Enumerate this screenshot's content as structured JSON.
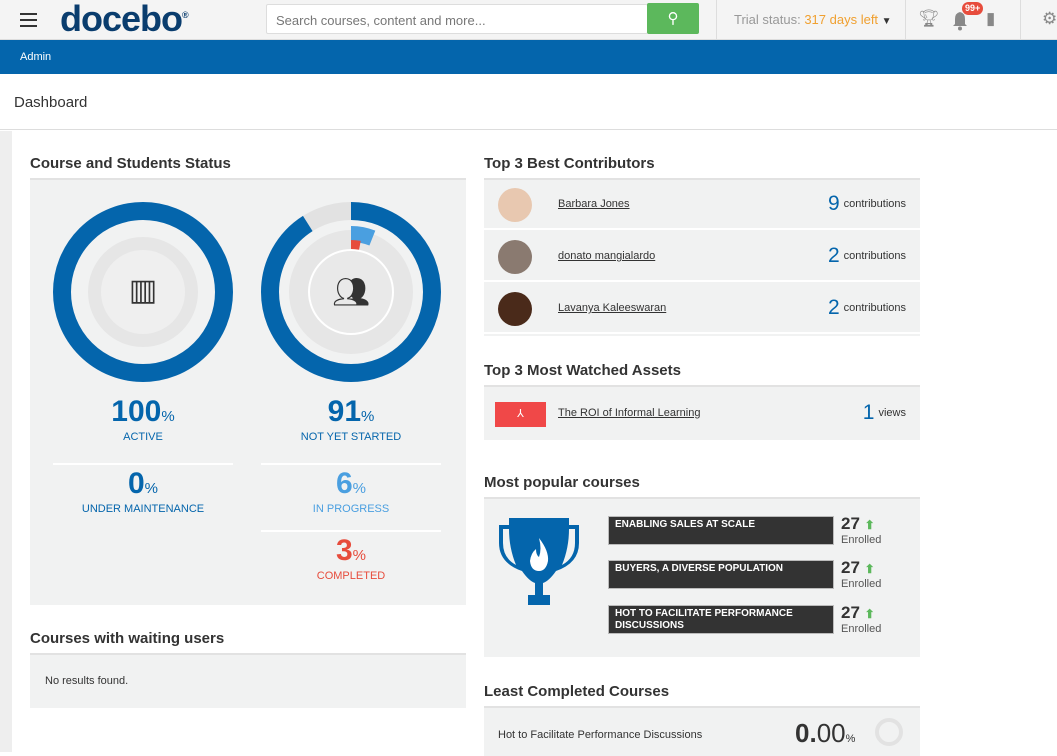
{
  "header": {
    "logo": "docebo",
    "search_placeholder": "Search courses, content and more...",
    "trial_label": "Trial status:",
    "trial_days": "317 days left",
    "notifications_count": "99+"
  },
  "nav": {
    "admin": "Admin"
  },
  "page": {
    "title": "Dashboard"
  },
  "course_status": {
    "title": "Course and Students Status",
    "active": {
      "value": "100",
      "unit": "%",
      "label": "ACTIVE"
    },
    "maintenance": {
      "value": "0",
      "unit": "%",
      "label": "UNDER MAINTENANCE"
    },
    "not_started": {
      "value": "91",
      "unit": "%",
      "label": "NOT YET STARTED"
    },
    "in_progress": {
      "value": "6",
      "unit": "%",
      "label": "IN PROGRESS"
    },
    "completed": {
      "value": "3",
      "unit": "%",
      "label": "COMPLETED"
    }
  },
  "waiting": {
    "title": "Courses with waiting users",
    "empty": "No results found."
  },
  "contributors": {
    "title": "Top 3 Best Contributors",
    "items": [
      {
        "name": "Barbara Jones",
        "count": "9",
        "unit": "contributions"
      },
      {
        "name": "donato mangialardo",
        "count": "2",
        "unit": "contributions"
      },
      {
        "name": "Lavanya Kaleeswaran",
        "count": "2",
        "unit": "contributions"
      }
    ]
  },
  "assets": {
    "title": "Top 3 Most Watched Assets",
    "items": [
      {
        "name": "The ROI of Informal Learning",
        "count": "1",
        "unit": "views"
      }
    ]
  },
  "popular": {
    "title": "Most popular courses",
    "items": [
      {
        "name": "ENABLING SALES AT SCALE",
        "count": "27",
        "label": "Enrolled"
      },
      {
        "name": "BUYERS, A DIVERSE POPULATION",
        "count": "27",
        "label": "Enrolled"
      },
      {
        "name": "HOT TO FACILITATE PERFORMANCE DISCUSSIONS",
        "count": "27",
        "label": "Enrolled"
      }
    ]
  },
  "least": {
    "title": "Least Completed Courses",
    "items": [
      {
        "name": "Hot to Facilitate Performance Discussions",
        "value": "0.",
        "decimals": "00",
        "unit": "%"
      }
    ]
  },
  "colors": {
    "brand": "#0465ac",
    "search": "#5cb85c",
    "completed": "#e74c3c",
    "in_progress": "#4a9fe0"
  }
}
